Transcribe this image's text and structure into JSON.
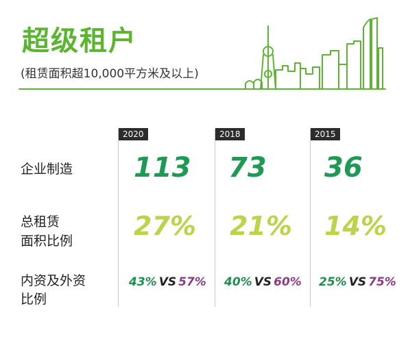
{
  "header": {
    "title": "超级租户",
    "subtitle": "(租赁面积超10,000平方米及以上)"
  },
  "colors": {
    "title_green": "#5bb531",
    "number_green": "#1e9a54",
    "percent_lime": "#bfd34a",
    "domestic_green": "#1e8f4e",
    "foreign_purple": "#8e3a87",
    "year_tab": "#2c2c2c"
  },
  "icons": [
    "shanghai-skyline-icon"
  ],
  "columns": [
    {
      "year": "2020",
      "count": "113",
      "share": "27%",
      "domestic": "43%",
      "vs": "VS",
      "foreign": "57%"
    },
    {
      "year": "2018",
      "count": "73",
      "share": "21%",
      "domestic": "40%",
      "vs": "VS",
      "foreign": "60%"
    },
    {
      "year": "2015",
      "count": "36",
      "share": "14%",
      "domestic": "25%",
      "vs": "VS",
      "foreign": "75%"
    }
  ],
  "rows": {
    "count_label": "企业制造",
    "share_label_1": "总租赁",
    "share_label_2": "面积比例",
    "ratio_label_1": "内资及外资",
    "ratio_label_2": "比例"
  }
}
